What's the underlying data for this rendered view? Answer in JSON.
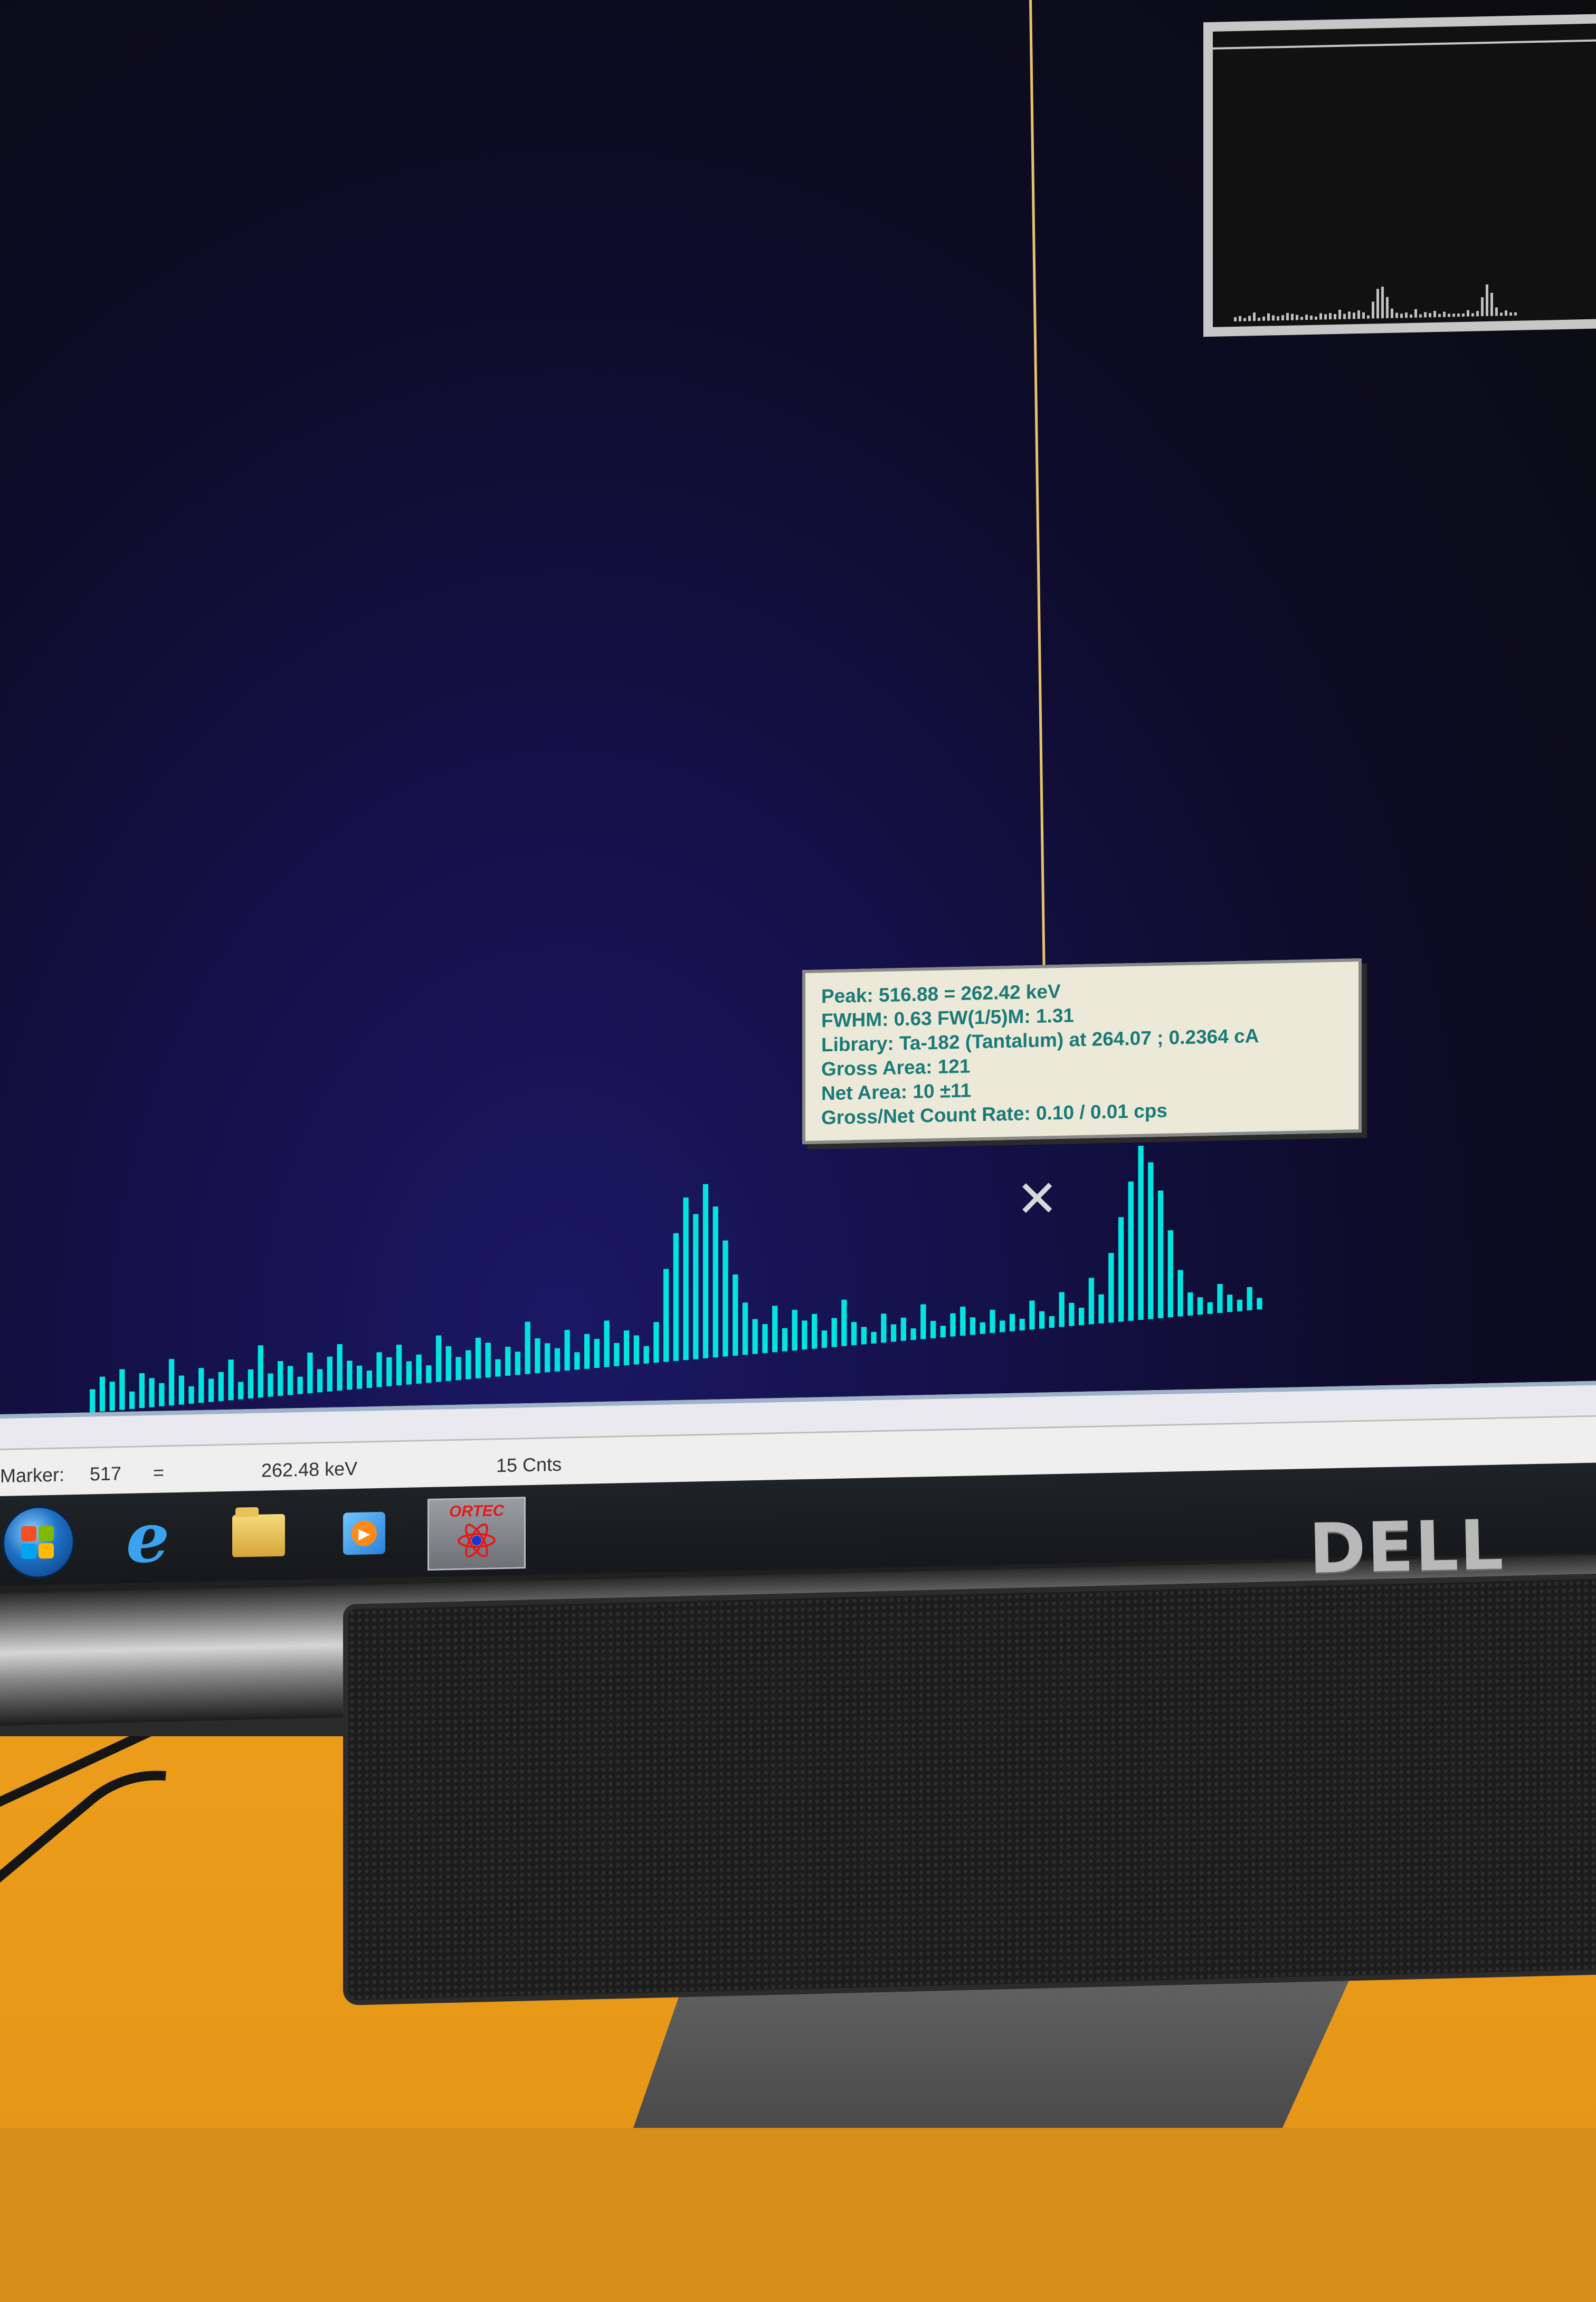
{
  "tooltip": {
    "peak": "Peak: 516.88 = 262.42 keV",
    "fwhm": "FWHM: 0.63  FW(1/5)M: 1.31",
    "library": "Library: Ta-182 (Tantalum) at 264.07 ;  0.2364 cA",
    "gross_area": "Gross Area: 121",
    "net_area": "Net Area: 10 ±11",
    "count_rate": "Gross/Net Count Rate: 0.10 / 0.01 cps"
  },
  "marker_bar": {
    "label": "Marker:",
    "channel": "517",
    "equals": "=",
    "energy": "262.48 keV",
    "counts": "15  Cnts"
  },
  "taskbar": {
    "ortec_label": "ORTEC"
  },
  "brand": "DELL",
  "colors": {
    "spectrum": "#00e5e0",
    "marker_line": "#e7c26b",
    "tooltip_text": "#1a7a78",
    "tooltip_bg": "#ece9d8"
  },
  "icons": [
    "start-orb-icon",
    "internet-explorer-icon",
    "file-explorer-icon",
    "media-player-icon",
    "ortec-maestro-icon",
    "cursor-x-icon"
  ],
  "chart_data": {
    "type": "bar",
    "description_series": "gamma spectrum counts per channel (unlabeled)",
    "values": [
      4,
      6,
      5,
      7,
      3,
      6,
      5,
      4,
      8,
      5,
      3,
      6,
      4,
      5,
      7,
      3,
      5,
      9,
      4,
      6,
      5,
      3,
      7,
      4,
      6,
      8,
      5,
      4,
      3,
      6,
      5,
      7,
      4,
      5,
      3,
      8,
      6,
      4,
      5,
      7,
      6,
      3,
      5,
      4,
      9,
      6,
      5,
      4,
      7,
      3,
      6,
      5,
      8,
      4,
      6,
      5,
      3,
      7,
      16,
      22,
      28,
      25,
      30,
      26,
      20,
      14,
      9,
      6,
      5,
      8,
      4,
      7,
      5,
      6,
      3,
      5,
      8,
      4,
      3,
      2,
      5,
      3,
      4,
      2,
      6,
      3,
      2,
      4,
      5,
      3,
      2,
      4,
      2,
      3,
      2,
      5,
      3,
      2,
      6,
      4,
      3,
      8,
      5,
      12,
      18,
      24,
      30,
      27,
      22,
      15,
      8,
      4,
      3,
      2,
      5,
      3,
      2,
      4,
      2
    ]
  }
}
